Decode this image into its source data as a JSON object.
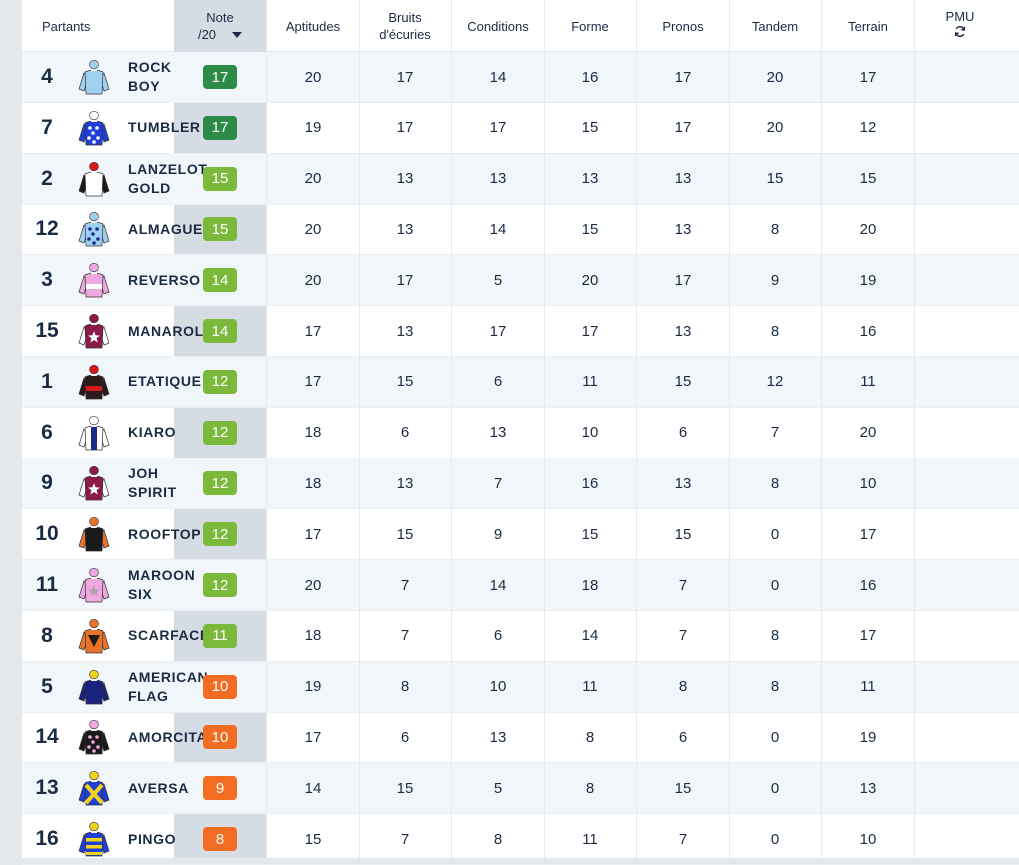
{
  "header": {
    "partants": "Partants",
    "note_line1": "Note",
    "note_line2": "/20",
    "aptitudes": "Aptitudes",
    "bruits_line1": "Bruits",
    "bruits_line2": "d'écuries",
    "conditions": "Conditions",
    "forme": "Forme",
    "pronos": "Pronos",
    "tandem": "Tandem",
    "terrain": "Terrain",
    "pmu": "PMU",
    "refresh_icon": "refresh-icon",
    "sort_icon": "caret-down-icon"
  },
  "colors": {
    "dark_green": "#2e8a47",
    "light_green": "#7ab93a",
    "orange": "#f26d21",
    "note_column": "#d5dce3"
  },
  "runners": [
    {
      "num": "4",
      "name": "ROCK\nBOY",
      "note": "17",
      "level": "dark_green",
      "aptitudes": "20",
      "bruits": "17",
      "conditions": "14",
      "forme": "16",
      "pronos": "17",
      "tandem": "20",
      "terrain": "17",
      "silk": {
        "body": "#9fd0f0",
        "sleeves": "#9fd0f0",
        "cap": "#9fd0f0",
        "pattern": "plain",
        "accent": "#9fd0f0"
      }
    },
    {
      "num": "7",
      "name": "TUMBLER",
      "note": "17",
      "level": "dark_green",
      "aptitudes": "19",
      "bruits": "17",
      "conditions": "17",
      "forme": "15",
      "pronos": "17",
      "tandem": "20",
      "terrain": "12",
      "silk": {
        "body": "#1f3fd6",
        "sleeves": "#1f3fd6",
        "cap": "#ffffff",
        "pattern": "dots",
        "accent": "#ffffff"
      }
    },
    {
      "num": "2",
      "name": "LANZELOT\nGOLD",
      "note": "15",
      "level": "light_green",
      "aptitudes": "20",
      "bruits": "13",
      "conditions": "13",
      "forme": "13",
      "pronos": "13",
      "tandem": "15",
      "terrain": "15",
      "silk": {
        "body": "#ffffff",
        "sleeves": "#1a1a1a",
        "cap": "#d81818",
        "pattern": "plain",
        "accent": "#ffffff"
      }
    },
    {
      "num": "12",
      "name": "ALMAGUER",
      "note": "15",
      "level": "light_green",
      "aptitudes": "20",
      "bruits": "13",
      "conditions": "14",
      "forme": "15",
      "pronos": "13",
      "tandem": "8",
      "terrain": "20",
      "silk": {
        "body": "#9fd0f0",
        "sleeves": "#9fd0f0",
        "cap": "#9fd0f0",
        "pattern": "dots",
        "accent": "#1a2b8a"
      }
    },
    {
      "num": "3",
      "name": "REVERSO",
      "note": "14",
      "level": "light_green",
      "aptitudes": "20",
      "bruits": "17",
      "conditions": "5",
      "forme": "20",
      "pronos": "17",
      "tandem": "9",
      "terrain": "19",
      "silk": {
        "body": "#f0a8e0",
        "sleeves": "#f0a8e0",
        "cap": "#f0a8e0",
        "pattern": "hoop",
        "accent": "#ffffff"
      }
    },
    {
      "num": "15",
      "name": "MANAROLA",
      "note": "14",
      "level": "light_green",
      "aptitudes": "17",
      "bruits": "13",
      "conditions": "17",
      "forme": "17",
      "pronos": "13",
      "tandem": "8",
      "terrain": "16",
      "silk": {
        "body": "#8a1a4a",
        "sleeves": "#ffffff",
        "cap": "#8a1a4a",
        "pattern": "star",
        "accent": "#ffffff"
      }
    },
    {
      "num": "1",
      "name": "ETATIQUE",
      "note": "12",
      "level": "light_green",
      "aptitudes": "17",
      "bruits": "15",
      "conditions": "6",
      "forme": "11",
      "pronos": "15",
      "tandem": "12",
      "terrain": "11",
      "silk": {
        "body": "#2a1a1a",
        "sleeves": "#2a1a1a",
        "cap": "#d81818",
        "pattern": "hoop",
        "accent": "#d81818"
      }
    },
    {
      "num": "6",
      "name": "KIARO",
      "note": "12",
      "level": "light_green",
      "aptitudes": "18",
      "bruits": "6",
      "conditions": "13",
      "forme": "10",
      "pronos": "6",
      "tandem": "7",
      "terrain": "20",
      "silk": {
        "body": "#ffffff",
        "sleeves": "#ffffff",
        "cap": "#ffffff",
        "pattern": "stripe",
        "accent": "#1a2b8a"
      }
    },
    {
      "num": "9",
      "name": "JOH\nSPIRIT",
      "note": "12",
      "level": "light_green",
      "aptitudes": "18",
      "bruits": "13",
      "conditions": "7",
      "forme": "16",
      "pronos": "13",
      "tandem": "8",
      "terrain": "10",
      "silk": {
        "body": "#8a1a4a",
        "sleeves": "#ffffff",
        "cap": "#8a1a4a",
        "pattern": "star",
        "accent": "#ffffff"
      }
    },
    {
      "num": "10",
      "name": "ROOFTOP",
      "note": "12",
      "level": "light_green",
      "aptitudes": "17",
      "bruits": "15",
      "conditions": "9",
      "forme": "15",
      "pronos": "15",
      "tandem": "0",
      "terrain": "17",
      "silk": {
        "body": "#1a1a1a",
        "sleeves": "#e8742a",
        "cap": "#e8742a",
        "pattern": "plain",
        "accent": "#1a1a1a"
      }
    },
    {
      "num": "11",
      "name": "MAROON\nSIX",
      "note": "12",
      "level": "light_green",
      "aptitudes": "20",
      "bruits": "7",
      "conditions": "14",
      "forme": "18",
      "pronos": "7",
      "tandem": "0",
      "terrain": "16",
      "silk": {
        "body": "#f0a8e0",
        "sleeves": "#f0a8e0",
        "cap": "#f0a8e0",
        "pattern": "star",
        "accent": "#b0a0b0"
      }
    },
    {
      "num": "8",
      "name": "SCARFACE",
      "note": "11",
      "level": "light_green",
      "aptitudes": "18",
      "bruits": "7",
      "conditions": "6",
      "forme": "14",
      "pronos": "7",
      "tandem": "8",
      "terrain": "17",
      "silk": {
        "body": "#e8742a",
        "sleeves": "#e8742a",
        "cap": "#e8742a",
        "pattern": "triangle",
        "accent": "#1a1a1a"
      }
    },
    {
      "num": "5",
      "name": "AMERICAN\nFLAG",
      "note": "10",
      "level": "orange",
      "aptitudes": "19",
      "bruits": "8",
      "conditions": "10",
      "forme": "11",
      "pronos": "8",
      "tandem": "8",
      "terrain": "11",
      "silk": {
        "body": "#1a237e",
        "sleeves": "#1a237e",
        "cap": "#f2d31a",
        "pattern": "plain",
        "accent": "#1a237e"
      }
    },
    {
      "num": "14",
      "name": "AMORCITA",
      "note": "10",
      "level": "orange",
      "aptitudes": "17",
      "bruits": "6",
      "conditions": "13",
      "forme": "8",
      "pronos": "6",
      "tandem": "0",
      "terrain": "19",
      "silk": {
        "body": "#1a1a1a",
        "sleeves": "#1a1a1a",
        "cap": "#f0a8e0",
        "pattern": "dots",
        "accent": "#f0a8e0"
      }
    },
    {
      "num": "13",
      "name": "AVERSA",
      "note": "9",
      "level": "orange",
      "aptitudes": "14",
      "bruits": "15",
      "conditions": "5",
      "forme": "8",
      "pronos": "15",
      "tandem": "0",
      "terrain": "13",
      "silk": {
        "body": "#1f3fd6",
        "sleeves": "#1f3fd6",
        "cap": "#f2d31a",
        "pattern": "cross",
        "accent": "#f2d31a"
      }
    },
    {
      "num": "16",
      "name": "PINGO",
      "note": "8",
      "level": "orange",
      "aptitudes": "15",
      "bruits": "7",
      "conditions": "8",
      "forme": "11",
      "pronos": "7",
      "tandem": "0",
      "terrain": "10",
      "silk": {
        "body": "#1f3fd6",
        "sleeves": "#1f3fd6",
        "cap": "#f2d31a",
        "pattern": "hoops",
        "accent": "#f2d31a"
      }
    }
  ]
}
